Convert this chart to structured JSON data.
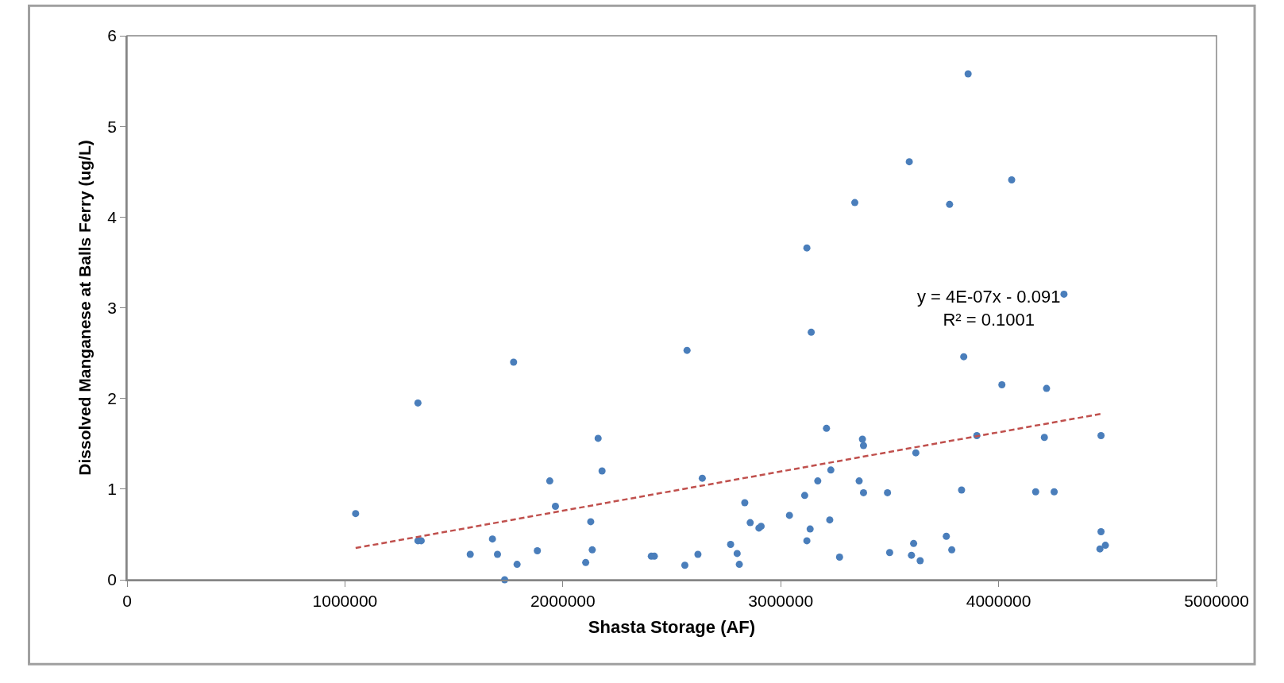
{
  "chart_data": {
    "type": "scatter",
    "xlabel": "Shasta Storage (AF)",
    "ylabel": "Dissolved Manganese at Balls Ferry (ug/L)",
    "xlim": [
      0,
      5000000
    ],
    "xticks": [
      0,
      1000000,
      2000000,
      3000000,
      4000000,
      5000000
    ],
    "ylim": [
      0,
      6
    ],
    "yticks": [
      0,
      1,
      2,
      3,
      4,
      5,
      6
    ],
    "grid": false,
    "marker": "circle",
    "series": [
      {
        "color": "#4a7ebb",
        "x": [
          1049000,
          1335000,
          1335000,
          1350000,
          1575000,
          1677000,
          1700000,
          1733000,
          1774000,
          1790000,
          1883000,
          1940000,
          1966000,
          2105000,
          2128000,
          2135000,
          2162000,
          2180000,
          2406000,
          2420000,
          2560000,
          2570000,
          2620000,
          2640000,
          2770000,
          2800000,
          2810000,
          2835000,
          2860000,
          2900000,
          2910000,
          3040000,
          3110000,
          3120000,
          3120000,
          3135000,
          3140000,
          3170000,
          3210000,
          3225000,
          3230000,
          3270000,
          3340000,
          3360000,
          3375000,
          3380000,
          3380000,
          3490000,
          3500000,
          3590000,
          3600000,
          3610000,
          3620000,
          3640000,
          3760000,
          3775000,
          3785000,
          3830000,
          3840000,
          3860000,
          3900000,
          4015000,
          4060000,
          4170000,
          4210000,
          4220000,
          4255000,
          4300000,
          4470000,
          4470000,
          4465000,
          4490000
        ],
        "values": [
          0.73,
          1.95,
          0.43,
          0.43,
          0.28,
          0.45,
          0.28,
          0.0,
          2.4,
          0.17,
          0.32,
          1.09,
          0.81,
          0.19,
          0.64,
          0.33,
          1.56,
          1.2,
          0.26,
          0.26,
          0.16,
          2.53,
          0.28,
          1.12,
          0.39,
          0.29,
          0.17,
          0.85,
          0.63,
          0.57,
          0.59,
          0.71,
          0.93,
          0.43,
          3.66,
          0.56,
          2.73,
          1.09,
          1.67,
          0.66,
          1.21,
          0.25,
          4.16,
          1.09,
          1.55,
          1.48,
          0.96,
          0.96,
          0.3,
          4.61,
          0.27,
          0.4,
          1.4,
          0.21,
          0.48,
          4.14,
          0.33,
          0.99,
          2.46,
          5.58,
          1.59,
          2.15,
          4.41,
          0.97,
          1.57,
          2.11,
          0.97,
          3.15,
          1.59,
          0.53,
          0.34,
          0.38
        ]
      },
      {
        "type": "line",
        "color": "#c0504d",
        "line_style": "dashed",
        "marker": "none",
        "x": [
          1049000,
          4470000
        ],
        "values": [
          0.35,
          1.83
        ]
      }
    ],
    "annotations": [
      "y = 4E-07x - 0.091\nR² = 0.1001"
    ]
  }
}
